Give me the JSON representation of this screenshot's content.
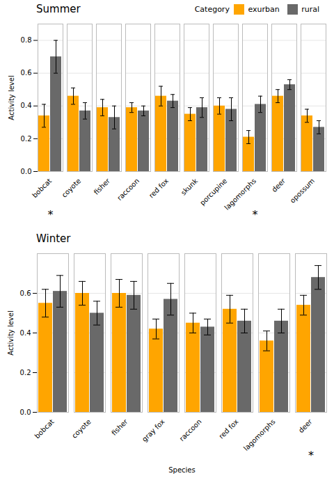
{
  "chart_data": [
    {
      "type": "bar",
      "title": "Summer",
      "ylabel": "Activity level",
      "categories": [
        "bobcat",
        "coyote",
        "fisher",
        "raccoon",
        "red fox",
        "skunk",
        "porcupine",
        "lagomorphs",
        "deer",
        "opossum"
      ],
      "series": [
        {
          "name": "exurban",
          "color": "#FFA500",
          "values": [
            0.34,
            0.46,
            0.39,
            0.39,
            0.46,
            0.35,
            0.4,
            0.21,
            0.46,
            0.34
          ],
          "errors": [
            0.07,
            0.05,
            0.05,
            0.03,
            0.06,
            0.04,
            0.05,
            0.04,
            0.04,
            0.04
          ]
        },
        {
          "name": "rural",
          "color": "#696969",
          "values": [
            0.7,
            0.37,
            0.33,
            0.37,
            0.43,
            0.39,
            0.38,
            0.41,
            0.53,
            0.27
          ],
          "errors": [
            0.1,
            0.05,
            0.07,
            0.03,
            0.04,
            0.06,
            0.07,
            0.05,
            0.03,
            0.04
          ]
        }
      ],
      "ylim": [
        0.0,
        0.9
      ],
      "yticks": [
        {
          "value": 0.0,
          "label": "0.0"
        },
        0.2,
        0.4,
        0.6,
        0.8
      ],
      "grid": true,
      "legend": "upper right",
      "legend_title": "Category",
      "annotations": [
        {
          "text": "*",
          "x": "bobcat"
        },
        {
          "text": "*",
          "x": "lagomorphs"
        }
      ]
    },
    {
      "type": "bar",
      "title": "Winter",
      "ylabel": "Activity level",
      "xlabel": "Species",
      "categories": [
        "bobcat",
        "coyote",
        "fisher",
        "gray fox",
        "raccoon",
        "red fox",
        "lagomorphs",
        "deer"
      ],
      "series": [
        {
          "name": "exurban",
          "color": "#FFA500",
          "values": [
            0.55,
            0.6,
            0.6,
            0.42,
            0.45,
            0.52,
            0.36,
            0.54
          ],
          "errors": [
            0.07,
            0.06,
            0.07,
            0.05,
            0.05,
            0.07,
            0.05,
            0.05
          ]
        },
        {
          "name": "rural",
          "color": "#696969",
          "values": [
            0.61,
            0.5,
            0.59,
            0.57,
            0.43,
            0.46,
            0.46,
            0.68
          ],
          "errors": [
            0.08,
            0.06,
            0.07,
            0.08,
            0.04,
            0.06,
            0.06,
            0.06
          ]
        }
      ],
      "ylim": [
        0.0,
        0.8
      ],
      "yticks": [
        {
          "value": 0.0,
          "label": "0.0"
        },
        0.2,
        0.4,
        0.6
      ],
      "grid": true,
      "annotations": [
        {
          "text": "*",
          "x": "deer"
        }
      ]
    }
  ]
}
